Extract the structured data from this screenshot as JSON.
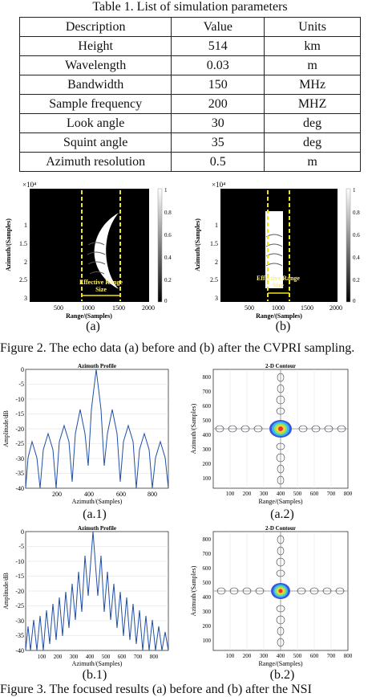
{
  "table": {
    "title": "Table 1. List of simulation parameters",
    "headers": [
      "Description",
      "Value",
      "Units"
    ],
    "rows": [
      [
        "Height",
        "514",
        "km"
      ],
      [
        "Wavelength",
        "0.03",
        "m"
      ],
      [
        "Bandwidth",
        "150",
        "MHz"
      ],
      [
        "Sample frequency",
        "200",
        "MHZ"
      ],
      [
        "Look angle",
        "30",
        "deg"
      ],
      [
        "Squint angle",
        "35",
        "deg"
      ],
      [
        "Azimuth resolution",
        "0.5",
        "m"
      ]
    ]
  },
  "figure2": {
    "caption": "Figure 2. The echo data (a) before and (b) after the CVPRI sampling.",
    "panel_a_label": "(a)",
    "panel_b_label": "(b)",
    "exp_label": "×10⁴",
    "ylabel": "Azimuth/(Samples)",
    "xlabel": "Range/(Samples)",
    "yticks": [
      "1",
      "1.5",
      "2",
      "2.5",
      "3"
    ],
    "xticks": [
      "500",
      "1000",
      "1500",
      "2000"
    ],
    "colorbar_ticks": [
      "1",
      "0.8",
      "0.6",
      "0.4",
      "0.2",
      "0"
    ],
    "annotation_line1": "Effective Range",
    "annotation_line2": "Size"
  },
  "figure3": {
    "caption": "Figure 3. The focused results (a) before and (b) after the NSI",
    "azimuth_profile_title": "Azimuth Profile",
    "contour_title": "2-D Contour",
    "profile_ylabel": "Amplitude/dB",
    "profile_xlabel": "Azimuth/(Samples)",
    "contour_ylabel": "Azimuth/(Samples)",
    "contour_xlabel": "Range/(Samples)",
    "a1_label": "(a.1)",
    "a2_label": "(a.2)",
    "b1_label": "(b.1)",
    "b2_label": "(b.2)",
    "profile_yticks": [
      "0",
      "-5",
      "-10",
      "-15",
      "-20",
      "-25",
      "-30",
      "-35",
      "-40"
    ],
    "a1_xticks": [
      "200",
      "400",
      "600",
      "800"
    ],
    "b1_xticks": [
      "100",
      "200",
      "300",
      "400",
      "500",
      "600",
      "700",
      "800"
    ],
    "contour_yticks": [
      "800",
      "700",
      "600",
      "500",
      "400",
      "300",
      "200",
      "100"
    ],
    "contour_xticks": [
      "100",
      "200",
      "300",
      "400",
      "500",
      "600",
      "700",
      "800"
    ]
  },
  "colors": {
    "line": "#1f4fa8",
    "guide": "#f5e30a",
    "bg_dark": "#000000"
  }
}
